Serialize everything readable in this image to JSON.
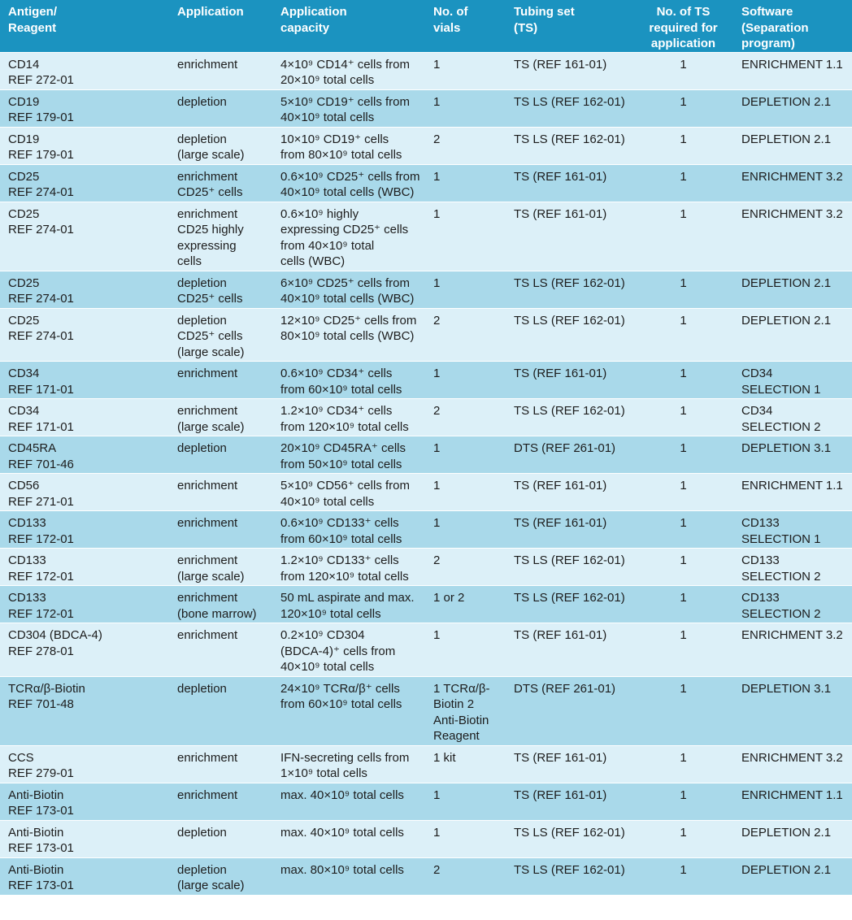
{
  "table": {
    "header": [
      "Antigen/\nReagent",
      "Application",
      "Application\ncapacity",
      "No. of\nvials",
      "Tubing set\n(TS)",
      "No. of TS\nrequired for\napplication",
      "Software\n(Separation\nprogram)"
    ],
    "rows": [
      [
        "CD14\nREF 272-01",
        "enrichment",
        "4×10⁹ CD14⁺ cells from\n20×10⁹ total cells",
        "1",
        "TS (REF 161-01)",
        "1",
        "ENRICHMENT 1.1"
      ],
      [
        "CD19\nREF 179-01",
        "depletion",
        "5×10⁹ CD19⁺ cells from\n40×10⁹ total cells",
        "1",
        "TS LS (REF 162-01)",
        "1",
        "DEPLETION 2.1"
      ],
      [
        "CD19\nREF 179-01",
        "depletion\n(large scale)",
        "10×10⁹ CD19⁺ cells\nfrom 80×10⁹ total cells",
        "2",
        "TS LS (REF 162-01)",
        "1",
        "DEPLETION 2.1"
      ],
      [
        "CD25\nREF 274-01",
        "enrichment\nCD25⁺ cells",
        "0.6×10⁹ CD25⁺ cells from\n40×10⁹ total cells (WBC)",
        "1",
        "TS (REF 161-01)",
        "1",
        "ENRICHMENT 3.2"
      ],
      [
        "CD25\nREF 274-01",
        "enrichment\nCD25 highly\nexpressing\ncells",
        "0.6×10⁹ highly\nexpressing CD25⁺ cells\nfrom 40×10⁹ total\ncells (WBC)",
        "1",
        "TS (REF 161-01)",
        "1",
        "ENRICHMENT 3.2"
      ],
      [
        "CD25\nREF 274-01",
        "depletion\nCD25⁺ cells",
        "6×10⁹ CD25⁺ cells from\n40×10⁹ total cells (WBC)",
        "1",
        "TS LS (REF 162-01)",
        "1",
        "DEPLETION 2.1"
      ],
      [
        "CD25\nREF 274-01",
        "depletion\nCD25⁺ cells\n(large scale)",
        "12×10⁹ CD25⁺ cells from\n80×10⁹ total cells (WBC)",
        "2",
        "TS LS (REF 162-01)",
        "1",
        "DEPLETION 2.1"
      ],
      [
        "CD34\nREF 171-01",
        "enrichment",
        "0.6×10⁹ CD34⁺ cells\nfrom 60×10⁹ total cells",
        "1",
        "TS (REF 161-01)",
        "1",
        "CD34\nSELECTION 1"
      ],
      [
        "CD34\nREF 171-01",
        "enrichment\n(large scale)",
        "1.2×10⁹ CD34⁺ cells\nfrom 120×10⁹ total cells",
        "2",
        "TS LS (REF 162-01)",
        "1",
        "CD34\nSELECTION 2"
      ],
      [
        "CD45RA\nREF 701-46",
        "depletion",
        "20×10⁹ CD45RA⁺ cells\nfrom 50×10⁹ total cells",
        "1",
        "DTS (REF 261-01)",
        "1",
        "DEPLETION 3.1"
      ],
      [
        "CD56\nREF 271-01",
        "enrichment",
        "5×10⁹ CD56⁺ cells from\n40×10⁹ total cells",
        "1",
        "TS (REF 161-01)",
        "1",
        "ENRICHMENT 1.1"
      ],
      [
        "CD133\nREF 172-01",
        "enrichment",
        "0.6×10⁹ CD133⁺ cells\nfrom 60×10⁹ total cells",
        "1",
        "TS (REF 161-01)",
        "1",
        "CD133\nSELECTION 1"
      ],
      [
        "CD133\nREF 172-01",
        "enrichment\n(large scale)",
        "1.2×10⁹ CD133⁺ cells\nfrom 120×10⁹ total cells",
        "2",
        "TS LS (REF 162-01)",
        "1",
        "CD133\nSELECTION 2"
      ],
      [
        "CD133\nREF 172-01",
        "enrichment\n(bone marrow)",
        "50 mL aspirate and max.\n120×10⁹ total cells",
        "1 or 2",
        "TS LS (REF 162-01)",
        "1",
        "CD133\nSELECTION 2"
      ],
      [
        "CD304 (BDCA-4)\nREF 278-01",
        "enrichment",
        "0.2×10⁹ CD304\n(BDCA-4)⁺ cells from\n40×10⁹ total cells",
        "1",
        "TS (REF 161-01)",
        "1",
        "ENRICHMENT 3.2"
      ],
      [
        "TCRα/β-Biotin\nREF 701-48",
        "depletion",
        "24×10⁹ TCRα/β⁺ cells\nfrom 60×10⁹ total cells",
        "1 TCRα/β-\nBiotin 2\nAnti-Biotin\nReagent",
        "DTS (REF 261-01)",
        "1",
        "DEPLETION 3.1"
      ],
      [
        "CCS\nREF 279-01",
        "enrichment",
        "IFN-secreting cells from\n1×10⁹ total cells",
        "1 kit",
        "TS (REF 161-01)",
        "1",
        "ENRICHMENT 3.2"
      ],
      [
        "Anti-Biotin\nREF 173-01",
        "enrichment",
        "max. 40×10⁹ total cells",
        "1",
        "TS (REF 161-01)",
        "1",
        "ENRICHMENT 1.1"
      ],
      [
        "Anti-Biotin\nREF 173-01",
        "depletion",
        "max. 40×10⁹ total cells",
        "1",
        "TS LS (REF 162-01)",
        "1",
        "DEPLETION 2.1"
      ],
      [
        "Anti-Biotin\nREF 173-01",
        "depletion\n(large scale)",
        "max. 80×10⁹ total cells",
        "2",
        "TS LS (REF 162-01)",
        "1",
        "DEPLETION 2.1"
      ]
    ]
  }
}
